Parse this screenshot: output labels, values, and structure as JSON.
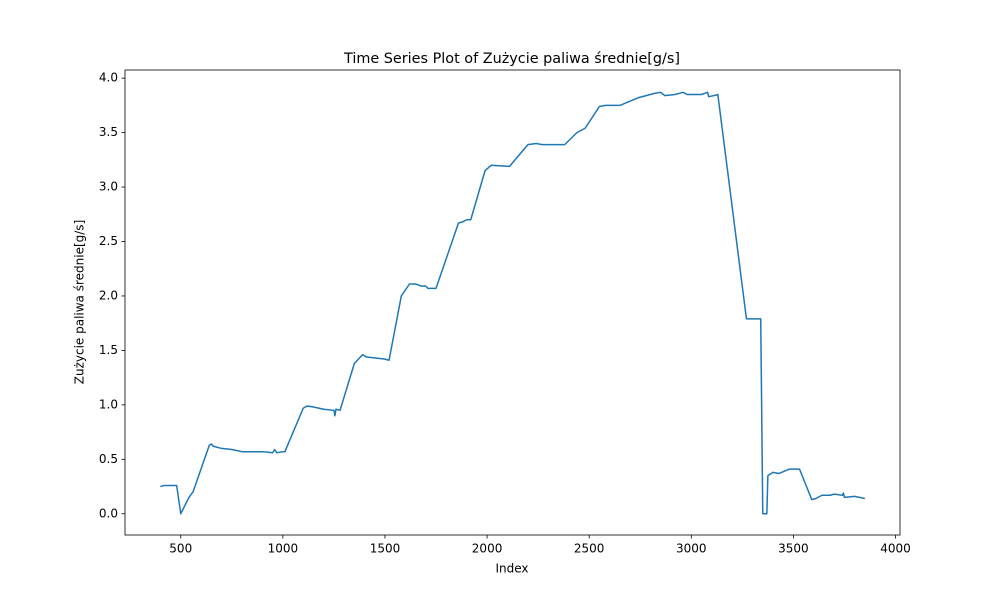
{
  "chart_data": {
    "type": "line",
    "title": "Time Series Plot of Zużycie paliwa średnie[g/s]",
    "x_label": "Index",
    "y_label": "Zużycie paliwa średnie[g/s]",
    "x": [
      400,
      420,
      480,
      500,
      540,
      560,
      640,
      650,
      660,
      700,
      750,
      800,
      850,
      900,
      950,
      960,
      970,
      1000,
      1010,
      1100,
      1120,
      1150,
      1200,
      1250,
      1255,
      1260,
      1280,
      1350,
      1390,
      1410,
      1500,
      1520,
      1580,
      1620,
      1650,
      1680,
      1700,
      1710,
      1750,
      1860,
      1880,
      1900,
      1920,
      1990,
      2020,
      2110,
      2200,
      2240,
      2270,
      2380,
      2440,
      2480,
      2550,
      2580,
      2650,
      2740,
      2820,
      2850,
      2870,
      2920,
      2960,
      2980,
      3050,
      3080,
      3085,
      3110,
      3130,
      3270,
      3340,
      3350,
      3370,
      3375,
      3400,
      3430,
      3480,
      3530,
      3590,
      3610,
      3640,
      3680,
      3700,
      3740,
      3745,
      3750,
      3800,
      3850
    ],
    "series": [
      {
        "name": "Zużycie paliwa średnie[g/s]",
        "color": "#1f77b4",
        "values": [
          0.25,
          0.26,
          0.26,
          0.0,
          0.15,
          0.2,
          0.63,
          0.64,
          0.62,
          0.6,
          0.59,
          0.57,
          0.57,
          0.57,
          0.56,
          0.59,
          0.56,
          0.57,
          0.57,
          0.97,
          0.99,
          0.98,
          0.96,
          0.95,
          0.9,
          0.96,
          0.95,
          1.38,
          1.46,
          1.44,
          1.42,
          1.41,
          2.0,
          2.11,
          2.11,
          2.09,
          2.09,
          2.07,
          2.07,
          2.67,
          2.68,
          2.7,
          2.7,
          3.15,
          3.2,
          3.19,
          3.39,
          3.4,
          3.39,
          3.39,
          3.5,
          3.54,
          3.74,
          3.75,
          3.75,
          3.82,
          3.86,
          3.87,
          3.84,
          3.85,
          3.87,
          3.85,
          3.85,
          3.87,
          3.83,
          3.84,
          3.85,
          1.79,
          1.79,
          0.0,
          0.0,
          0.35,
          0.38,
          0.37,
          0.41,
          0.41,
          0.13,
          0.14,
          0.17,
          0.17,
          0.18,
          0.17,
          0.19,
          0.15,
          0.16,
          0.14
        ]
      }
    ],
    "xlim": [
      227,
      4022
    ],
    "ylim": [
      -0.195,
      4.075
    ],
    "xticks": [
      500,
      1000,
      1500,
      2000,
      2500,
      3000,
      3500,
      4000
    ],
    "yticks": [
      {
        "value": 0,
        "label": "0.0"
      },
      0.5,
      {
        "value": 1,
        "label": "1.0"
      },
      1.5,
      {
        "value": 2,
        "label": "2.0"
      },
      2.5,
      {
        "value": 3,
        "label": "3.0"
      },
      3.5,
      {
        "value": 4,
        "label": "4.0"
      }
    ],
    "grid": false
  }
}
